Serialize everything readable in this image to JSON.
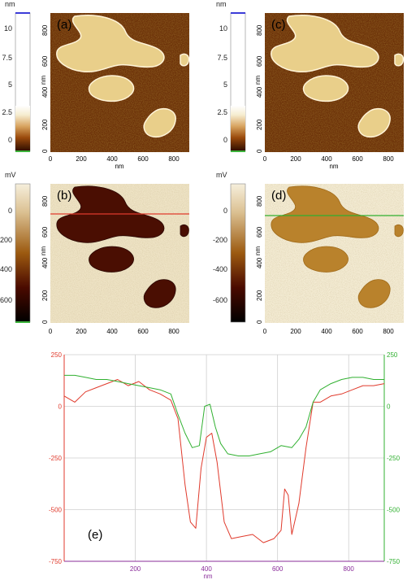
{
  "chart_data": [
    {
      "panel": "(a)",
      "type": "heatmap",
      "quantity": "height",
      "colorbar_unit": "nm",
      "colorbar_ticks": [
        "10",
        "7.5",
        "5",
        "2.5",
        "0"
      ],
      "colorbar_range": [
        -1,
        11
      ],
      "xlabel": "nm",
      "ylabel": "nm",
      "x_ticks": [
        "0",
        "200",
        "400",
        "600",
        "800"
      ],
      "y_ticks": [
        "0",
        "200",
        "400",
        "600",
        "800"
      ],
      "xlim": [
        0,
        900
      ],
      "ylim": [
        0,
        900
      ]
    },
    {
      "panel": "(b)",
      "type": "heatmap",
      "quantity": "phase",
      "colorbar_unit": "mV",
      "colorbar_ticks": [
        "0",
        "-200",
        "-400",
        "-600"
      ],
      "colorbar_range": [
        -750,
        100
      ],
      "xlabel": "nm",
      "ylabel": "nm",
      "x_ticks": [
        "0",
        "200",
        "400",
        "600",
        "800"
      ],
      "y_ticks": [
        "0",
        "200",
        "400",
        "600",
        "800"
      ],
      "xlim": [
        0,
        900
      ],
      "ylim": [
        0,
        900
      ],
      "profile_line_y": 700,
      "profile_line_color": "#e03a2c"
    },
    {
      "panel": "(c)",
      "type": "heatmap",
      "quantity": "height",
      "colorbar_unit": "nm",
      "colorbar_ticks": [
        "10",
        "7.5",
        "5",
        "2.5",
        "0"
      ],
      "colorbar_range": [
        -1,
        11
      ],
      "xlabel": "nm",
      "ylabel": "nm",
      "x_ticks": [
        "0",
        "200",
        "400",
        "600",
        "800"
      ],
      "y_ticks": [
        "0",
        "200",
        "400",
        "600",
        "800"
      ],
      "xlim": [
        0,
        900
      ],
      "ylim": [
        0,
        900
      ]
    },
    {
      "panel": "(d)",
      "type": "heatmap",
      "quantity": "phase",
      "colorbar_unit": "mV",
      "colorbar_ticks": [
        "0",
        "-200",
        "-400",
        "-600"
      ],
      "colorbar_range": [
        -750,
        100
      ],
      "xlabel": "nm",
      "ylabel": "nm",
      "x_ticks": [
        "0",
        "200",
        "400",
        "600",
        "800"
      ],
      "y_ticks": [
        "0",
        "200",
        "400",
        "600",
        "800"
      ],
      "xlim": [
        0,
        900
      ],
      "ylim": [
        0,
        900
      ],
      "profile_line_y": 700,
      "profile_line_color": "#30b030"
    },
    {
      "panel": "(e)",
      "type": "line",
      "xlabel": "nm",
      "ylabel": "",
      "xlim": [
        0,
        900
      ],
      "ylim": [
        -750,
        250
      ],
      "x_ticks": [
        "200",
        "400",
        "600",
        "800"
      ],
      "y_ticks": [
        "250",
        "0",
        "-250",
        "-500",
        "-750"
      ],
      "grid": true,
      "series": [
        {
          "color": "#e03a2c",
          "x": [
            0,
            30,
            60,
            90,
            120,
            150,
            180,
            210,
            240,
            270,
            300,
            320,
            340,
            355,
            370,
            385,
            400,
            415,
            430,
            450,
            470,
            500,
            530,
            560,
            590,
            610,
            620,
            630,
            640,
            660,
            680,
            700,
            720,
            750,
            780,
            810,
            840,
            870,
            900
          ],
          "y": [
            50,
            20,
            70,
            90,
            110,
            130,
            100,
            120,
            80,
            60,
            30,
            -60,
            -380,
            -560,
            -590,
            -300,
            -150,
            -130,
            -270,
            -560,
            -640,
            -630,
            -620,
            -660,
            -640,
            -600,
            -400,
            -430,
            -620,
            -470,
            -200,
            20,
            20,
            50,
            60,
            80,
            100,
            100,
            110
          ]
        },
        {
          "color": "#30b030",
          "x": [
            0,
            30,
            60,
            90,
            120,
            150,
            180,
            210,
            240,
            270,
            300,
            320,
            340,
            360,
            380,
            395,
            410,
            425,
            440,
            460,
            490,
            520,
            550,
            580,
            610,
            640,
            660,
            680,
            700,
            720,
            750,
            780,
            810,
            840,
            870,
            900
          ],
          "y": [
            150,
            150,
            140,
            130,
            130,
            120,
            110,
            100,
            90,
            80,
            60,
            -40,
            -130,
            -200,
            -190,
            0,
            10,
            -100,
            -180,
            -230,
            -240,
            -240,
            -230,
            -220,
            -190,
            -200,
            -160,
            -100,
            20,
            80,
            110,
            130,
            140,
            140,
            130,
            130
          ]
        }
      ],
      "annotation": "(e)"
    }
  ]
}
